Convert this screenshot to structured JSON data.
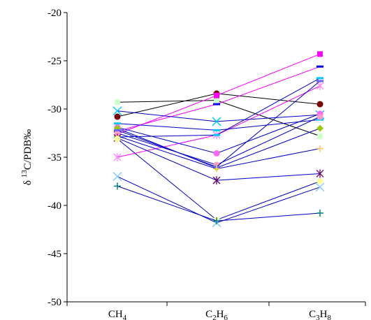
{
  "chart_data": {
    "type": "line",
    "categories": [
      "CH4",
      "C2H6",
      "C3H8"
    ],
    "x_tick_labels": [
      {
        "main": "CH",
        "sub": "4",
        "tail": ""
      },
      {
        "main": "C",
        "sub": "2",
        "tail": "H",
        "sub2": "6"
      },
      {
        "main": "C",
        "sub": "3",
        "tail": "H",
        "sub2": "8"
      }
    ],
    "ylabel": {
      "prefix": "δ ",
      "sup": "13",
      "rest": "C/PDB‰"
    },
    "ylim": [
      -50,
      -20
    ],
    "yticks": [
      -50,
      -45,
      -40,
      -35,
      -30,
      -25,
      -20
    ],
    "y_tick_labels": [
      "-50",
      "-45",
      "-40",
      "-35",
      "-30",
      "-25",
      "-20"
    ],
    "grid": false,
    "legend": "none",
    "series": [
      {
        "values": [
          -30.8,
          -28.4,
          -29.5
        ],
        "color": "#000000",
        "marker": "circle",
        "marker_color": "#7b0000"
      },
      {
        "values": [
          -29.3,
          -29.1,
          -32.8
        ],
        "color": "#000000",
        "marker": "square",
        "marker_color": "#ccffcc"
      },
      {
        "values": [
          -32.6,
          -28.6,
          -24.3
        ],
        "color": "#ff00ff",
        "marker": "square",
        "marker_color": "#ff00ff"
      },
      {
        "values": [
          -32.3,
          -29.5,
          -25.6
        ],
        "color": "#ff00ff",
        "marker": "dash",
        "marker_color": "#0000ff"
      },
      {
        "values": [
          -35.0,
          -32.7,
          -27.6
        ],
        "color": "#ff00ff",
        "marker": "star",
        "marker_color": "#ff88ff"
      },
      {
        "values": [
          -32.9,
          -32.7,
          -26.8
        ],
        "color": "#0000cc",
        "marker": "dash",
        "marker_color": "#00ccff"
      },
      {
        "values": [
          -30.2,
          -31.3,
          -30.6
        ],
        "color": "#0000cc",
        "marker": "x",
        "marker_color": "#00ccff"
      },
      {
        "values": [
          -31.5,
          -32.2,
          -31.1
        ],
        "color": "#0000cc",
        "marker": "dash",
        "marker_color": "#00ccff"
      },
      {
        "values": [
          -31.9,
          -34.6,
          -30.5
        ],
        "color": "#0000cc",
        "marker": "circle",
        "marker_color": "#ff66ff"
      },
      {
        "values": [
          -32.5,
          -35.8,
          -30.8
        ],
        "color": "#0000cc",
        "marker": "circle",
        "marker_color": "#ff99cc"
      },
      {
        "values": [
          -32.0,
          -36.1,
          -32.0
        ],
        "color": "#0000cc",
        "marker": "diamond",
        "marker_color": "#99cc00"
      },
      {
        "values": [
          -32.2,
          -36.0,
          -27.1
        ],
        "color": "#0000cc",
        "marker": "dash",
        "marker_color": "#6666ff"
      },
      {
        "values": [
          -32.8,
          -36.2,
          -34.1
        ],
        "color": "#0000cc",
        "marker": "plus",
        "marker_color": "#ffcc66"
      },
      {
        "values": [
          -33.0,
          -37.4,
          -36.7
        ],
        "color": "#0000cc",
        "marker": "star",
        "marker_color": "#660066"
      },
      {
        "values": [
          -33.1,
          -41.5,
          -37.5
        ],
        "color": "#0000cc",
        "marker": "circle",
        "marker_color": "#ffff99"
      },
      {
        "values": [
          -37.0,
          -41.8,
          -38.1
        ],
        "color": "#0000cc",
        "marker": "x",
        "marker_color": "#88ccff"
      },
      {
        "values": [
          -38.0,
          -41.6,
          -40.8
        ],
        "color": "#0000cc",
        "marker": "plus",
        "marker_color": "#008080"
      }
    ]
  }
}
